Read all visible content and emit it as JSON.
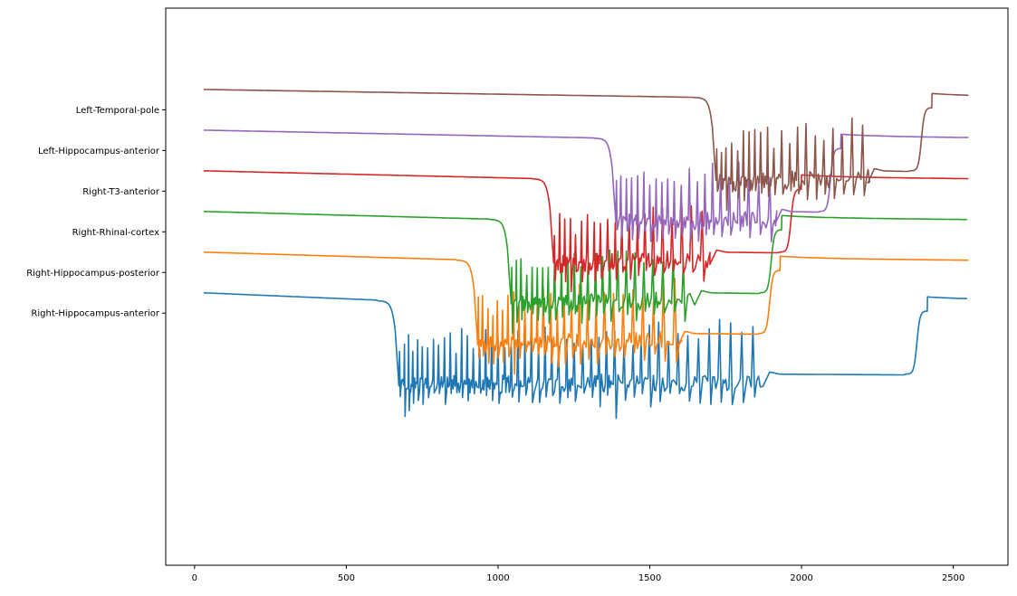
{
  "chart_data": {
    "type": "line",
    "title": "",
    "xlabel": "",
    "ylabel": "",
    "xlim": [
      -95,
      2680
    ],
    "ylim": [
      -10.2,
      3.5
    ],
    "x_ticks": [
      0,
      500,
      1000,
      1500,
      2000,
      2500
    ],
    "x_tick_labels": [
      "0",
      "500",
      "1000",
      "1500",
      "2000",
      "2500"
    ],
    "y_ticks": [
      1,
      0,
      -1,
      -2,
      -3,
      -4
    ],
    "y_tick_labels": [
      "Left-Temporal-pole",
      "Left-Hippocampus-anterior",
      "Right-T3-anterior",
      "Right-Rhinal-cortex",
      "Right-Hippocampus-posterior",
      "Right-Hippocampus-anterior"
    ],
    "grid": false,
    "legend": "none",
    "series": [
      {
        "label": "Right-Hippocampus-anterior",
        "color": "#1f77b4",
        "offset": -5,
        "onset": 665,
        "seizure_end": 1865,
        "recovery": 2375,
        "tail_dip": -0.55,
        "step_from": 0.2,
        "amp": 1.05,
        "trough": 1.35
      },
      {
        "label": "Right-Hippocampus-posterior",
        "color": "#ff7f0e",
        "offset": -4,
        "onset": 925,
        "seizure_end": 1585,
        "recovery": 1890,
        "tail_dip": -0.55,
        "step_from": 0.2,
        "amp": 1.0,
        "trough": 1.2
      },
      {
        "label": "Right-Rhinal-cortex",
        "color": "#2ca02c",
        "offset": -3,
        "onset": 1035,
        "seizure_end": 1640,
        "recovery": 1895,
        "tail_dip": -0.55,
        "step_from": 0.2,
        "amp": 0.95,
        "trough": 1.25
      },
      {
        "label": "Right-T3-anterior",
        "color": "#d62728",
        "offset": -2,
        "onset": 1175,
        "seizure_end": 1690,
        "recovery": 1960,
        "tail_dip": -0.55,
        "step_from": 0.2,
        "amp": 0.95,
        "trough": 1.3
      },
      {
        "label": "Left-Hippocampus-anterior",
        "color": "#9467bd",
        "offset": -1,
        "onset": 1380,
        "seizure_end": 1905,
        "recovery": 2090,
        "tail_dip": -0.55,
        "step_from": 0.2,
        "amp": 0.95,
        "trough": 1.4
      },
      {
        "label": "Left-Temporal-pole",
        "color": "#8c564b",
        "offset": 0,
        "onset": 1710,
        "seizure_end": 2210,
        "recovery": 2390,
        "tail_dip": -0.55,
        "step_from": 0.2,
        "amp": 0.95,
        "trough": 1.3
      }
    ]
  }
}
